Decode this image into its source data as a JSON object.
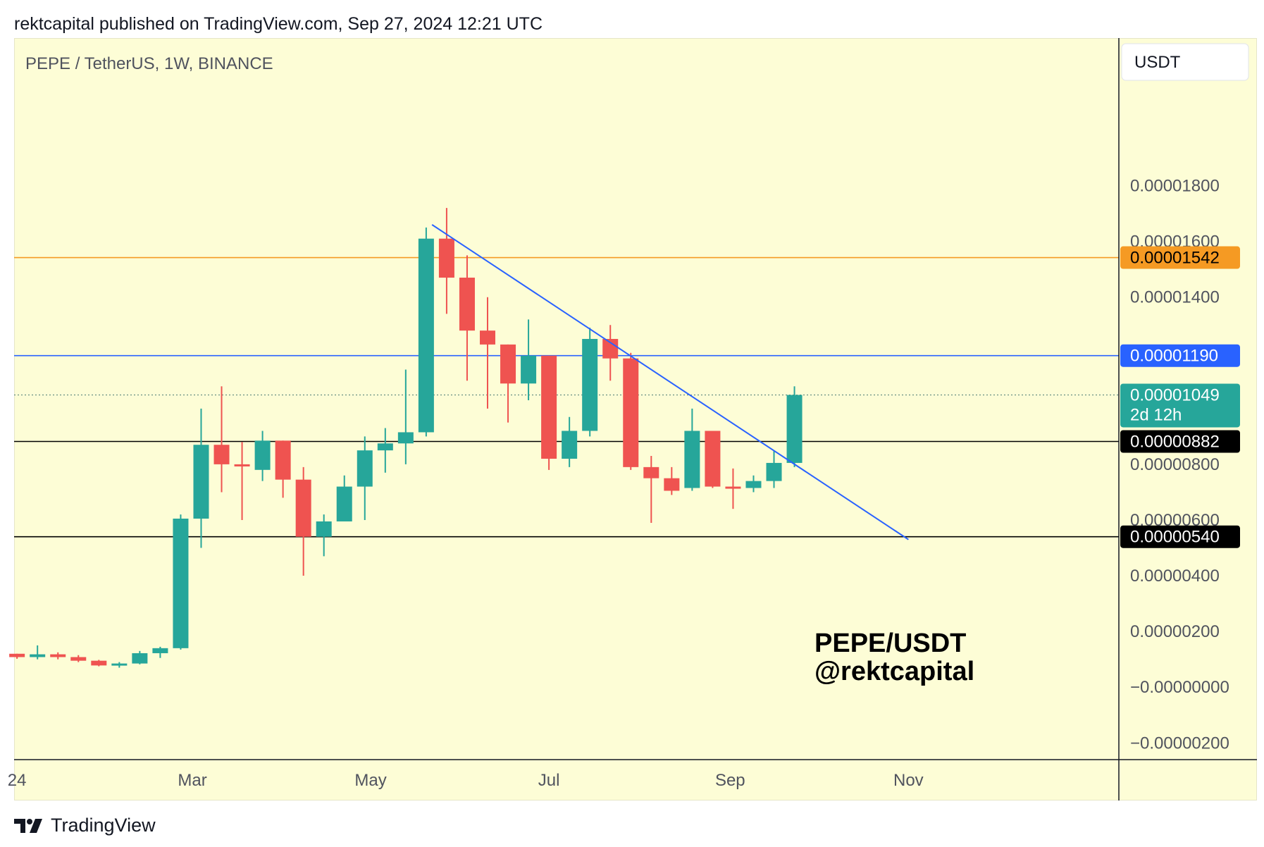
{
  "header": {
    "published_text": "rektcapital published on TradingView.com, Sep 27, 2024 12:21 UTC"
  },
  "footer": {
    "brand": "TradingView",
    "logo_icon": "tradingview-logo-icon"
  },
  "colors": {
    "background": "#fdfdd6",
    "up": "#26a69a",
    "down": "#ef5350",
    "trendline": "#2962ff",
    "orange_level": "#f59a23",
    "blue_level": "#2962ff",
    "black_level": "#000000",
    "current_price": "#26a69a"
  },
  "chart_data": {
    "type": "candlestick",
    "title": "PEPE / TetherUS, 1W, BINANCE",
    "watermark": [
      "PEPE/USDT",
      "@rektcapital"
    ],
    "currency_button": "USDT",
    "x_ticks": [
      {
        "label": "24",
        "date": "2024-01-01"
      },
      {
        "label": "Mar",
        "date": "2024-03-01"
      },
      {
        "label": "May",
        "date": "2024-05-01"
      },
      {
        "label": "Jul",
        "date": "2024-07-01"
      },
      {
        "label": "Sep",
        "date": "2024-09-01"
      },
      {
        "label": "Nov",
        "date": "2024-11-01"
      }
    ],
    "y_ticks": [
      {
        "label": "0.00001800",
        "value": 1.8e-05
      },
      {
        "label": "0.00001600",
        "value": 1.6e-05
      },
      {
        "label": "0.00001400",
        "value": 1.4e-05
      },
      {
        "label": "0.00000800",
        "value": 8e-06
      },
      {
        "label": "0.00000600",
        "value": 6e-06
      },
      {
        "label": "0.00000400",
        "value": 4e-06
      },
      {
        "label": "0.00000200",
        "value": 2e-06
      },
      {
        "label": "−0.00000000",
        "value": 0
      },
      {
        "label": "−0.00000200",
        "value": -2e-06
      }
    ],
    "ylim": [
      -2.6e-06,
      2.33e-05
    ],
    "xlim": [
      "2023-12-31",
      "2025-01-12"
    ],
    "horizontal_levels": [
      {
        "value": 1.542e-05,
        "label": "0.00001542",
        "color": "#f59a23",
        "text_color": "#000000"
      },
      {
        "value": 1.19e-05,
        "label": "0.00001190",
        "color": "#2962ff",
        "text_color": "#ffffff"
      },
      {
        "value": 8.82e-06,
        "label": "0.00000882",
        "color": "#000000",
        "text_color": "#ffffff"
      },
      {
        "value": 5.4e-06,
        "label": "0.00000540",
        "color": "#000000",
        "text_color": "#ffffff"
      }
    ],
    "current_price": {
      "value": 1.049e-05,
      "label": "0.00001049",
      "countdown": "2d 12h"
    },
    "trendline": {
      "start": {
        "date": "2024-05-22",
        "value": 1.66e-05
      },
      "end": {
        "date": "2024-11-01",
        "value": 5.3e-06
      }
    },
    "candles": [
      {
        "date": "2024-01-01",
        "open": 1.2e-06,
        "high": 1.2e-06,
        "low": 1.02e-06,
        "close": 1.08e-06
      },
      {
        "date": "2024-01-08",
        "open": 1.08e-06,
        "high": 1.5e-06,
        "low": 1e-06,
        "close": 1.18e-06
      },
      {
        "date": "2024-01-15",
        "open": 1.18e-06,
        "high": 1.25e-06,
        "low": 1e-06,
        "close": 1.08e-06
      },
      {
        "date": "2024-01-22",
        "open": 1.08e-06,
        "high": 1.15e-06,
        "low": 9e-07,
        "close": 9.5e-07
      },
      {
        "date": "2024-01-29",
        "open": 9.5e-07,
        "high": 9.8e-07,
        "low": 7.5e-07,
        "close": 7.8e-07
      },
      {
        "date": "2024-02-05",
        "open": 7.8e-07,
        "high": 9e-07,
        "low": 7e-07,
        "close": 8.5e-07
      },
      {
        "date": "2024-02-12",
        "open": 8.5e-07,
        "high": 1.3e-06,
        "low": 8.2e-07,
        "close": 1.22e-06
      },
      {
        "date": "2024-02-19",
        "open": 1.22e-06,
        "high": 1.45e-06,
        "low": 1.05e-06,
        "close": 1.4e-06
      },
      {
        "date": "2024-02-26",
        "open": 1.4e-06,
        "high": 6.2e-06,
        "low": 1.35e-06,
        "close": 6.05e-06
      },
      {
        "date": "2024-03-04",
        "open": 6.05e-06,
        "high": 1e-05,
        "low": 5e-06,
        "close": 8.7e-06
      },
      {
        "date": "2024-03-11",
        "open": 8.7e-06,
        "high": 1.08e-05,
        "low": 7e-06,
        "close": 8e-06
      },
      {
        "date": "2024-03-18",
        "open": 8e-06,
        "high": 8.8e-06,
        "low": 6e-06,
        "close": 7.95e-06
      },
      {
        "date": "2024-03-25",
        "open": 7.8e-06,
        "high": 9.2e-06,
        "low": 7.4e-06,
        "close": 8.85e-06
      },
      {
        "date": "2024-04-01",
        "open": 8.85e-06,
        "high": 8.85e-06,
        "low": 6.8e-06,
        "close": 7.45e-06
      },
      {
        "date": "2024-04-08",
        "open": 7.45e-06,
        "high": 7.9e-06,
        "low": 4e-06,
        "close": 5.4e-06
      },
      {
        "date": "2024-04-15",
        "open": 5.4e-06,
        "high": 6.2e-06,
        "low": 4.7e-06,
        "close": 5.95e-06
      },
      {
        "date": "2024-04-22",
        "open": 5.95e-06,
        "high": 7.6e-06,
        "low": 6e-06,
        "close": 7.2e-06
      },
      {
        "date": "2024-04-29",
        "open": 7.2e-06,
        "high": 9e-06,
        "low": 6e-06,
        "close": 8.5e-06
      },
      {
        "date": "2024-05-06",
        "open": 8.5e-06,
        "high": 9.3e-06,
        "low": 7.7e-06,
        "close": 8.75e-06
      },
      {
        "date": "2024-05-13",
        "open": 8.75e-06,
        "high": 1.14e-05,
        "low": 8e-06,
        "close": 9.15e-06
      },
      {
        "date": "2024-05-20",
        "open": 9.15e-06,
        "high": 1.65e-05,
        "low": 9e-06,
        "close": 1.61e-05
      },
      {
        "date": "2024-05-27",
        "open": 1.61e-05,
        "high": 1.72e-05,
        "low": 1.34e-05,
        "close": 1.47e-05
      },
      {
        "date": "2024-06-03",
        "open": 1.47e-05,
        "high": 1.55e-05,
        "low": 1.1e-05,
        "close": 1.28e-05
      },
      {
        "date": "2024-06-10",
        "open": 1.28e-05,
        "high": 1.4e-05,
        "low": 1e-05,
        "close": 1.23e-05
      },
      {
        "date": "2024-06-17",
        "open": 1.23e-05,
        "high": 1.23e-05,
        "low": 9.5e-06,
        "close": 1.09e-05
      },
      {
        "date": "2024-06-24",
        "open": 1.09e-05,
        "high": 1.32e-05,
        "low": 1.03e-05,
        "close": 1.19e-05
      },
      {
        "date": "2024-07-01",
        "open": 1.19e-05,
        "high": 1.19e-05,
        "low": 7.8e-06,
        "close": 8.2e-06
      },
      {
        "date": "2024-07-08",
        "open": 8.2e-06,
        "high": 9.7e-06,
        "low": 7.9e-06,
        "close": 9.2e-06
      },
      {
        "date": "2024-07-15",
        "open": 9.2e-06,
        "high": 1.29e-05,
        "low": 9e-06,
        "close": 1.25e-05
      },
      {
        "date": "2024-07-22",
        "open": 1.25e-05,
        "high": 1.3e-05,
        "low": 1.1e-05,
        "close": 1.18e-05
      },
      {
        "date": "2024-07-29",
        "open": 1.18e-05,
        "high": 1.2e-05,
        "low": 7.8e-06,
        "close": 7.9e-06
      },
      {
        "date": "2024-08-05",
        "open": 7.9e-06,
        "high": 8.3e-06,
        "low": 5.9e-06,
        "close": 7.5e-06
      },
      {
        "date": "2024-08-12",
        "open": 7.5e-06,
        "high": 7.9e-06,
        "low": 6.9e-06,
        "close": 7.05e-06
      },
      {
        "date": "2024-08-19",
        "open": 7.15e-06,
        "high": 1e-05,
        "low": 7.05e-06,
        "close": 9.2e-06
      },
      {
        "date": "2024-08-26",
        "open": 9.2e-06,
        "high": 9.2e-06,
        "low": 7.15e-06,
        "close": 7.2e-06
      },
      {
        "date": "2024-09-02",
        "open": 7.2e-06,
        "high": 7.85e-06,
        "low": 6.4e-06,
        "close": 7.15e-06
      },
      {
        "date": "2024-09-09",
        "open": 7.15e-06,
        "high": 7.6e-06,
        "low": 7e-06,
        "close": 7.4e-06
      },
      {
        "date": "2024-09-16",
        "open": 7.4e-06,
        "high": 8.5e-06,
        "low": 7.15e-06,
        "close": 8.05e-06
      },
      {
        "date": "2024-09-23",
        "open": 8.05e-06,
        "high": 1.08e-05,
        "low": 7.9e-06,
        "close": 1.049e-05
      }
    ]
  }
}
